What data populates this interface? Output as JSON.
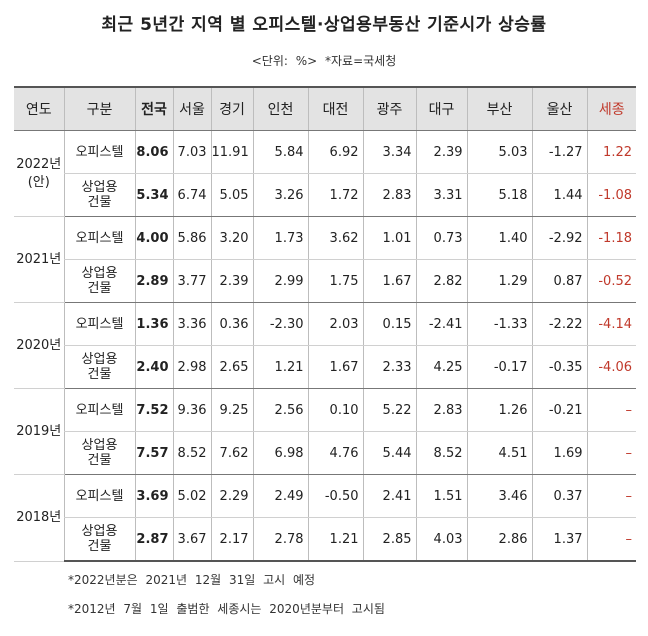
{
  "title": "최근 5년간 지역 별 오피스텔·상업용부동산 기준시가 상승률",
  "unit": "<단위: %> *자료=국세청",
  "headers": [
    "연도",
    "구분",
    "전국",
    "서울",
    "경기",
    "인천",
    "대전",
    "광주",
    "대구",
    "부산",
    "울산",
    "세종"
  ],
  "years": [
    {
      "label_line1": "2022년",
      "label_line2": "(안)",
      "rows": [
        {
          "cat_line1": "오피스텔",
          "cat_line2": "",
          "values": [
            "8.06",
            "7.03",
            "11.91",
            "5.84",
            "6.92",
            "3.34",
            "2.39",
            "5.03",
            "-1.27",
            "1.22"
          ]
        },
        {
          "cat_line1": "상업용",
          "cat_line2": "건물",
          "values": [
            "5.34",
            "6.74",
            "5.05",
            "3.26",
            "1.72",
            "2.83",
            "3.31",
            "5.18",
            "1.44",
            "-1.08"
          ]
        }
      ]
    },
    {
      "label_line1": "2021년",
      "label_line2": "",
      "rows": [
        {
          "cat_line1": "오피스텔",
          "cat_line2": "",
          "values": [
            "4.00",
            "5.86",
            "3.20",
            "1.73",
            "3.62",
            "1.01",
            "0.73",
            "1.40",
            "-2.92",
            "-1.18"
          ]
        },
        {
          "cat_line1": "상업용",
          "cat_line2": "건물",
          "values": [
            "2.89",
            "3.77",
            "2.39",
            "2.99",
            "1.75",
            "1.67",
            "2.82",
            "1.29",
            "0.87",
            "-0.52"
          ]
        }
      ]
    },
    {
      "label_line1": "2020년",
      "label_line2": "",
      "rows": [
        {
          "cat_line1": "오피스텔",
          "cat_line2": "",
          "values": [
            "1.36",
            "3.36",
            "0.36",
            "-2.30",
            "2.03",
            "0.15",
            "-2.41",
            "-1.33",
            "-2.22",
            "-4.14"
          ]
        },
        {
          "cat_line1": "상업용",
          "cat_line2": "건물",
          "values": [
            "2.40",
            "2.98",
            "2.65",
            "1.21",
            "1.67",
            "2.33",
            "4.25",
            "-0.17",
            "-0.35",
            "-4.06"
          ]
        }
      ]
    },
    {
      "label_line1": "2019년",
      "label_line2": "",
      "rows": [
        {
          "cat_line1": "오피스텔",
          "cat_line2": "",
          "values": [
            "7.52",
            "9.36",
            "9.25",
            "2.56",
            "0.10",
            "5.22",
            "2.83",
            "1.26",
            "-0.21",
            "–"
          ]
        },
        {
          "cat_line1": "상업용",
          "cat_line2": "건물",
          "values": [
            "7.57",
            "8.52",
            "7.62",
            "6.98",
            "4.76",
            "5.44",
            "8.52",
            "4.51",
            "1.69",
            "–"
          ]
        }
      ]
    },
    {
      "label_line1": "2018년",
      "label_line2": "",
      "rows": [
        {
          "cat_line1": "오피스텔",
          "cat_line2": "",
          "values": [
            "3.69",
            "5.02",
            "2.29",
            "2.49",
            "-0.50",
            "2.41",
            "1.51",
            "3.46",
            "0.37",
            "–"
          ]
        },
        {
          "cat_line1": "상업용",
          "cat_line2": "건물",
          "values": [
            "2.87",
            "3.67",
            "2.17",
            "2.78",
            "1.21",
            "2.85",
            "4.03",
            "2.86",
            "1.37",
            "–"
          ]
        }
      ]
    }
  ],
  "notes": [
    "*2022년분은 2021년 12월 31일 고시 예정",
    "*2012년 7월 1일 출범한 세종시는 2020년분부터 고시됨"
  ],
  "colors": {
    "accent_red": "#c0392b",
    "header_bg": "#e3e3e3"
  }
}
